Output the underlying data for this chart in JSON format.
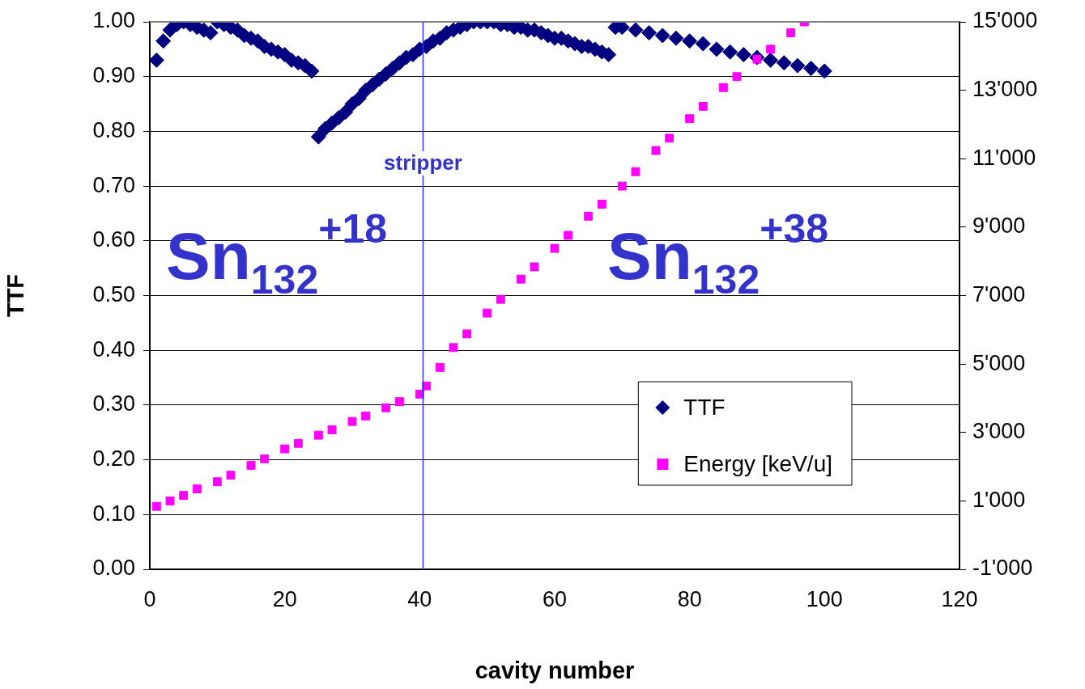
{
  "chart_data": {
    "type": "scatter",
    "xlabel": "cavity number",
    "ylabel": "TTF",
    "xlim": [
      0,
      120
    ],
    "xticks": [
      0,
      20,
      40,
      60,
      80,
      100,
      120
    ],
    "ylim": [
      0,
      1
    ],
    "yticks": [
      {
        "value": 0,
        "label": "0.00"
      },
      {
        "value": 0.1,
        "label": "0.10"
      },
      {
        "value": 0.2,
        "label": "0.20"
      },
      {
        "value": 0.3,
        "label": "0.30"
      },
      {
        "value": 0.4,
        "label": "0.40"
      },
      {
        "value": 0.5,
        "label": "0.50"
      },
      {
        "value": 0.6,
        "label": "0.60"
      },
      {
        "value": 0.7,
        "label": "0.70"
      },
      {
        "value": 0.8,
        "label": "0.80"
      },
      {
        "value": 0.9,
        "label": "0.90"
      },
      {
        "value": 1,
        "label": "1.00"
      }
    ],
    "y2lim": [
      -1000,
      15000
    ],
    "y2ticks": [
      {
        "value": -1000,
        "label": "-1'000"
      },
      {
        "value": 1000,
        "label": "1'000"
      },
      {
        "value": 3000,
        "label": "3'000"
      },
      {
        "value": 5000,
        "label": "5'000"
      },
      {
        "value": 7000,
        "label": "7'000"
      },
      {
        "value": 9000,
        "label": "9'000"
      },
      {
        "value": 11000,
        "label": "11'000"
      },
      {
        "value": 13000,
        "label": "13'000"
      },
      {
        "value": 15000,
        "label": "15'000"
      }
    ],
    "grid": "y",
    "legend": "bottom right",
    "series": [
      {
        "name": "TTF",
        "color": "#000080",
        "marker": "diamond",
        "x": [
          1,
          2,
          3,
          4,
          5,
          6,
          7,
          8,
          9,
          10,
          11,
          12,
          13,
          14,
          15,
          16,
          17,
          18,
          19,
          20,
          21,
          22,
          23,
          24,
          25,
          26,
          27,
          28,
          29,
          30,
          31,
          32,
          33,
          34,
          35,
          36,
          37,
          38,
          39,
          40,
          41,
          42,
          43,
          44,
          45,
          46,
          47,
          48,
          49,
          50,
          51,
          52,
          53,
          54,
          55,
          56,
          57,
          58,
          59,
          60,
          61,
          62,
          63,
          64,
          65,
          66,
          67,
          68,
          69,
          70,
          72,
          74,
          76,
          78,
          80,
          82,
          84,
          86,
          88,
          90,
          92,
          94,
          96,
          98,
          100
        ],
        "values": [
          0.93,
          0.965,
          0.985,
          0.995,
          1.0,
          0.995,
          0.99,
          0.985,
          0.98,
          1.0,
          0.995,
          0.99,
          0.985,
          0.975,
          0.97,
          0.965,
          0.955,
          0.95,
          0.945,
          0.94,
          0.93,
          0.925,
          0.92,
          0.91,
          0.79,
          0.805,
          0.815,
          0.825,
          0.835,
          0.85,
          0.86,
          0.875,
          0.885,
          0.895,
          0.905,
          0.915,
          0.925,
          0.935,
          0.94,
          0.95,
          0.955,
          0.965,
          0.97,
          0.98,
          0.985,
          0.99,
          0.995,
          1.0,
          1.0,
          1.0,
          1.0,
          0.995,
          0.995,
          0.99,
          0.99,
          0.985,
          0.985,
          0.98,
          0.975,
          0.97,
          0.97,
          0.965,
          0.96,
          0.955,
          0.955,
          0.95,
          0.945,
          0.94,
          0.99,
          0.99,
          0.985,
          0.98,
          0.975,
          0.97,
          0.965,
          0.96,
          0.95,
          0.945,
          0.94,
          0.935,
          0.93,
          0.925,
          0.92,
          0.915,
          0.91
        ]
      },
      {
        "name": "Energy [keV/u]",
        "color": "#ff00ff",
        "marker": "square",
        "axis": "y2",
        "x": [
          1,
          3,
          5,
          7,
          10,
          12,
          15,
          17,
          20,
          22,
          25,
          27,
          30,
          32,
          35,
          37,
          40,
          41,
          43,
          45,
          47,
          50,
          52,
          55,
          57,
          60,
          62,
          65,
          67,
          70,
          72,
          75,
          77,
          80,
          82,
          85,
          87,
          90,
          92,
          95,
          97
        ],
        "values": [
          840,
          1000,
          1160,
          1350,
          1560,
          1750,
          2040,
          2230,
          2520,
          2680,
          2920,
          3080,
          3320,
          3480,
          3720,
          3900,
          4120,
          4360,
          4900,
          5480,
          5880,
          6490,
          6890,
          7480,
          7840,
          8380,
          8760,
          9320,
          9670,
          10200,
          10620,
          11240,
          11600,
          12170,
          12530,
          13080,
          13400,
          13910,
          14200,
          14680,
          15000
        ]
      }
    ],
    "ref_lines": [
      {
        "axis": "x",
        "value": 40.5,
        "label": "stripper",
        "color": "#3333ff"
      }
    ],
    "annotations": [
      "Sn$_{132}$$^{+18}$",
      "Sn$_{132}$$^{+38}$"
    ]
  }
}
